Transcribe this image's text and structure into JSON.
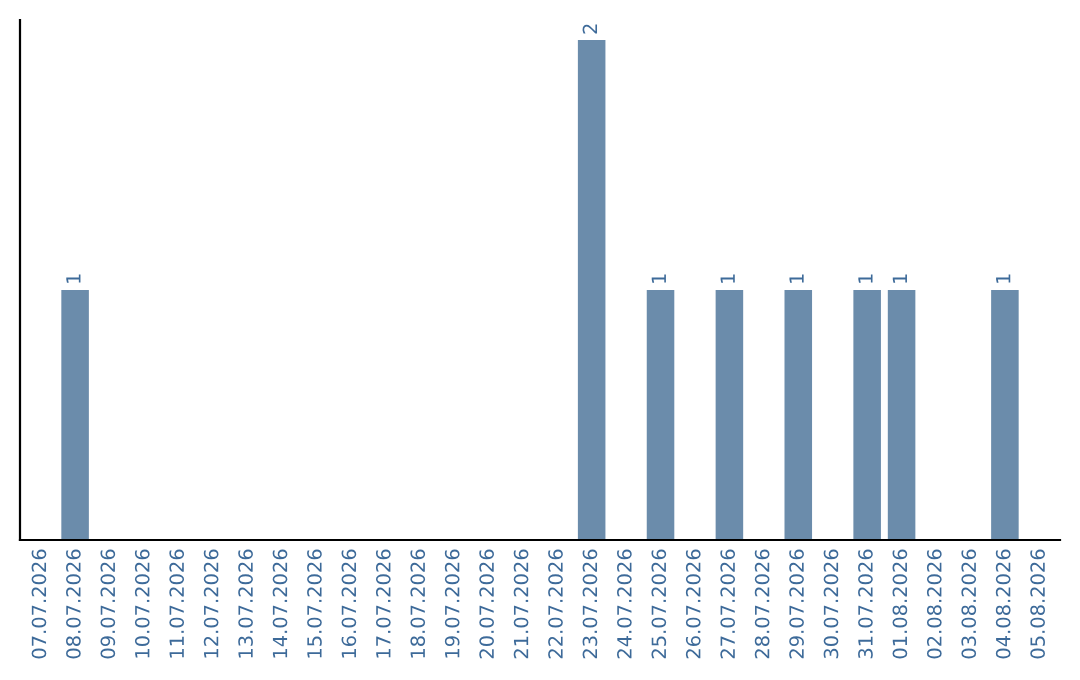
{
  "chart_data": {
    "type": "bar",
    "categories": [
      "07.07.2026",
      "08.07.2026",
      "09.07.2026",
      "10.07.2026",
      "11.07.2026",
      "12.07.2026",
      "13.07.2026",
      "14.07.2026",
      "15.07.2026",
      "16.07.2026",
      "17.07.2026",
      "18.07.2026",
      "19.07.2026",
      "20.07.2026",
      "21.07.2026",
      "22.07.2026",
      "23.07.2026",
      "24.07.2026",
      "25.07.2026",
      "26.07.2026",
      "27.07.2026",
      "28.07.2026",
      "29.07.2026",
      "30.07.2026",
      "31.07.2026",
      "01.08.2026",
      "02.08.2026",
      "03.08.2026",
      "04.08.2026",
      "05.08.2026"
    ],
    "values": [
      0,
      1,
      0,
      0,
      0,
      0,
      0,
      0,
      0,
      0,
      0,
      0,
      0,
      0,
      0,
      0,
      2,
      0,
      1,
      0,
      1,
      0,
      1,
      0,
      1,
      1,
      0,
      0,
      1,
      0
    ],
    "value_labels": [
      null,
      "1",
      null,
      null,
      null,
      null,
      null,
      null,
      null,
      null,
      null,
      null,
      null,
      null,
      null,
      null,
      "2",
      null,
      "1",
      null,
      "1",
      null,
      "1",
      null,
      "1",
      "1",
      null,
      null,
      "1",
      null
    ],
    "color": "#6b8cab",
    "grid": false,
    "legend": false
  }
}
